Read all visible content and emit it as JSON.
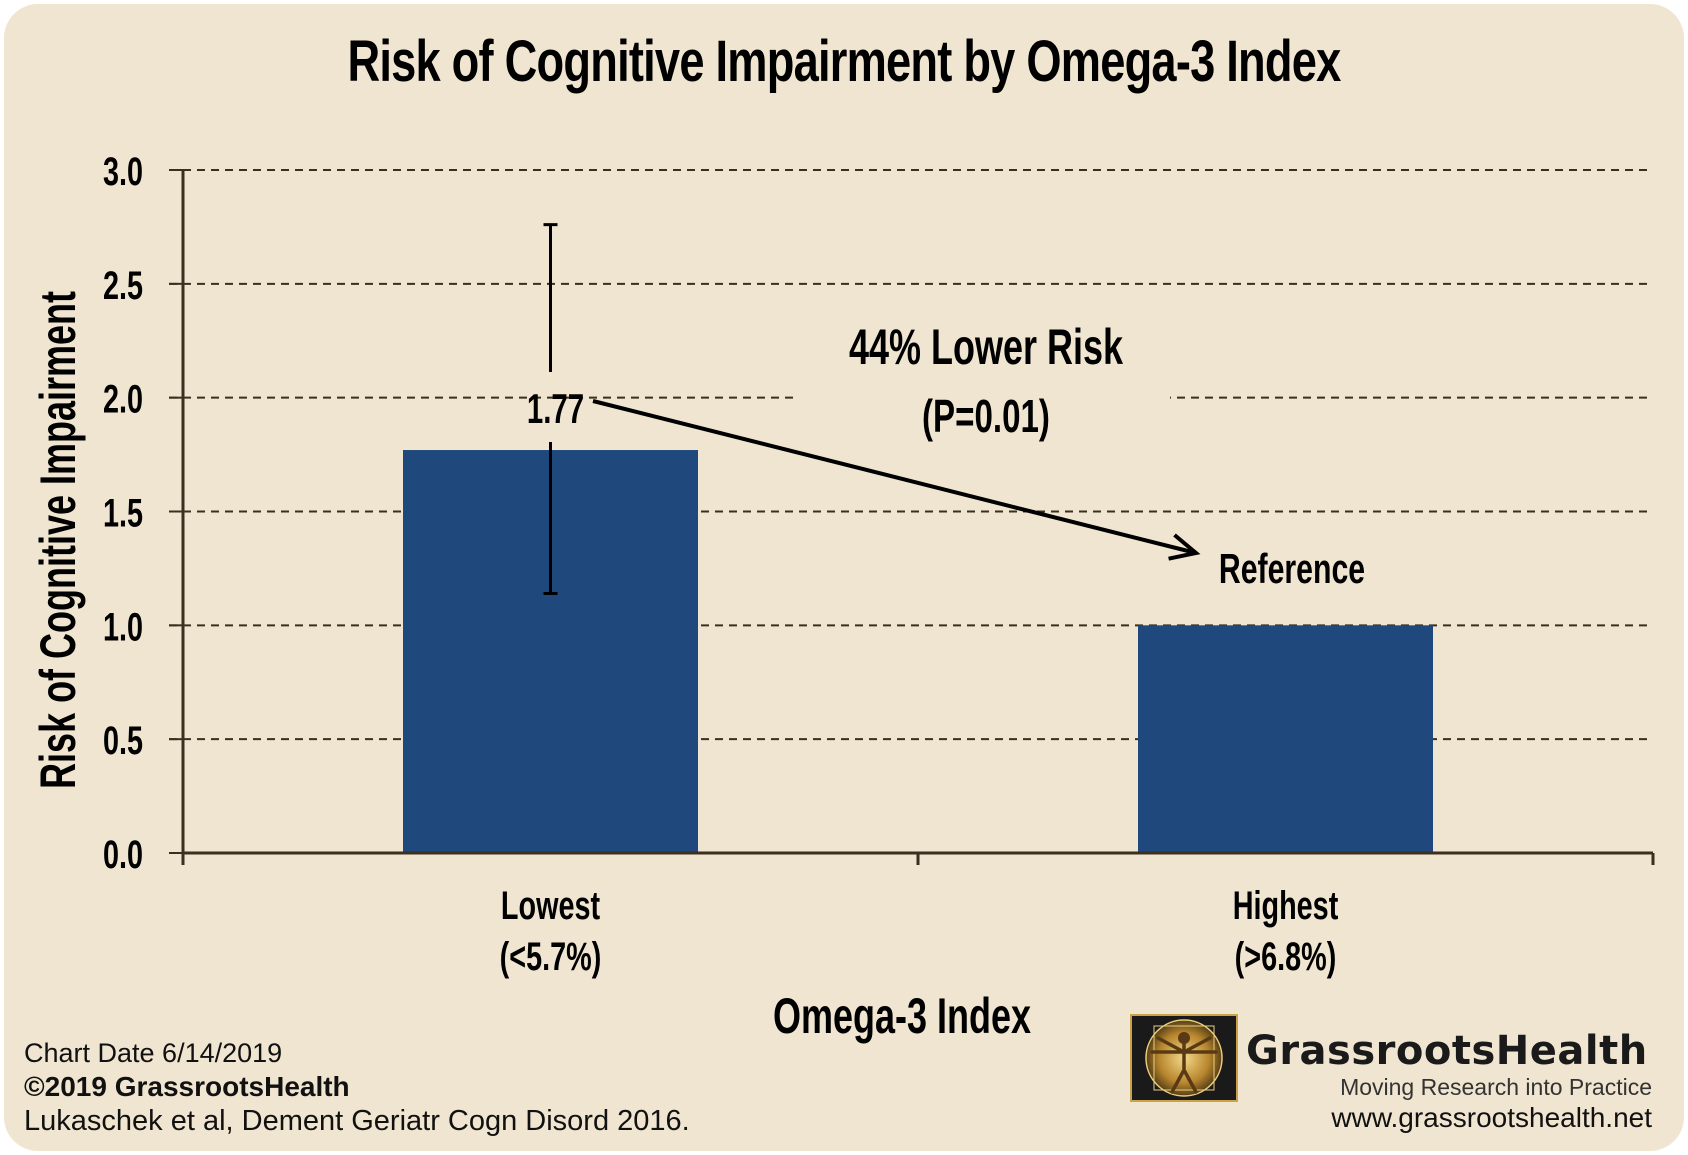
{
  "chart_data": {
    "type": "bar",
    "title": "Risk of Cognitive Impairment by Omega-3 Index",
    "xlabel": "Omega-3 Index",
    "ylabel": "Risk of Cognitive Impairment",
    "ylim": [
      0,
      3.0
    ],
    "yticks": [
      "0.0",
      "0.5",
      "1.0",
      "1.5",
      "2.0",
      "2.5",
      "3.0"
    ],
    "grid": true,
    "categories": [
      {
        "line1": "Lowest",
        "line2": "(<5.7%)"
      },
      {
        "line1": "Highest",
        "line2": "(>6.8%)"
      }
    ],
    "values": [
      1.77,
      1.0
    ],
    "error_bar": {
      "category": 0,
      "low": 1.14,
      "high": 2.76
    },
    "data_labels": [
      "1.77",
      "Reference"
    ],
    "annotation": {
      "line1": "44% Lower Risk",
      "line2": "(P=0.01)"
    },
    "bar_color": "#1f497d"
  },
  "footer": {
    "chart_date": "Chart Date 6/14/2019",
    "copyright": "©2019 GrassrootsHealth",
    "citation": "Lukaschek et al, Dement Geriatr Cogn Disord 2016."
  },
  "logo": {
    "name": "GrassrootsHealth",
    "tagline": "Moving Research into Practice",
    "url": "www.grassrootshealth.net"
  },
  "colors": {
    "background": "#f0e5d0",
    "bar": "#1f497d",
    "gold": "#caa24a"
  }
}
